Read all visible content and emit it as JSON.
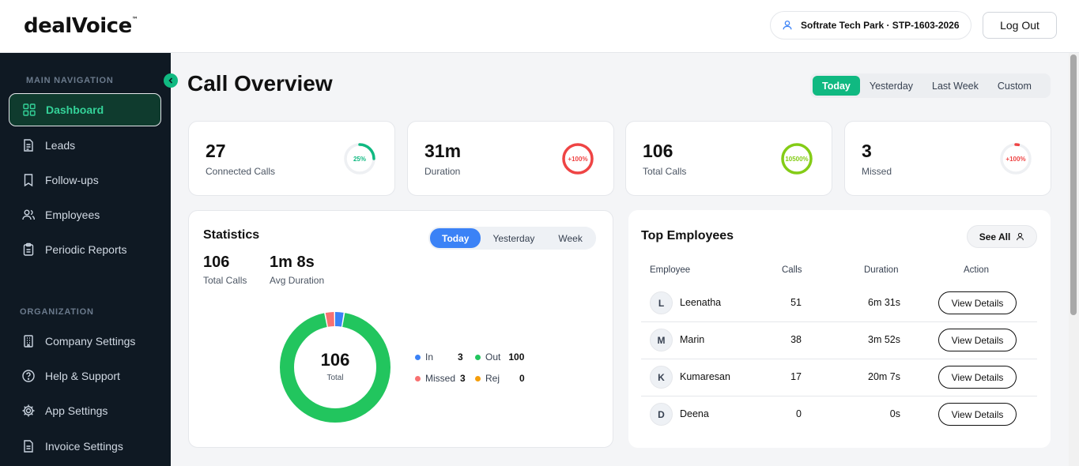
{
  "app": {
    "logo": "dealVoice",
    "logo_tm": "™"
  },
  "header": {
    "company": "Softrate Tech Park · STP-1603-2026",
    "logout_label": "Log Out"
  },
  "sidebar": {
    "main_section": "MAIN NAVIGATION",
    "main_items": [
      {
        "label": "Dashboard",
        "icon": "grid-icon"
      },
      {
        "label": "Leads",
        "icon": "document-icon"
      },
      {
        "label": "Follow-ups",
        "icon": "bookmark-icon"
      },
      {
        "label": "Employees",
        "icon": "users-icon"
      },
      {
        "label": "Periodic Reports",
        "icon": "clipboard-icon"
      }
    ],
    "org_section": "ORGANIZATION",
    "org_items": [
      {
        "label": "Company Settings",
        "icon": "building-icon"
      },
      {
        "label": "Help & Support",
        "icon": "help-icon"
      },
      {
        "label": "App Settings",
        "icon": "gear-icon"
      },
      {
        "label": "Invoice Settings",
        "icon": "invoice-icon"
      }
    ]
  },
  "main": {
    "title": "Call Overview",
    "range_tabs": [
      "Today",
      "Yesterday",
      "Last Week",
      "Custom"
    ],
    "active_range": "Today"
  },
  "stat_cards": [
    {
      "value": "27",
      "label": "Connected Calls",
      "ring_text": "25%",
      "ring_color": "#10b981",
      "ring_fraction": 0.25
    },
    {
      "value": "31m",
      "label": "Duration",
      "ring_text": "+100%",
      "ring_color": "#ef4444",
      "ring_fraction": 1.0
    },
    {
      "value": "106",
      "label": "Total Calls",
      "ring_text": "10500%",
      "ring_color": "#84cc16",
      "ring_fraction": 1.0
    },
    {
      "value": "3",
      "label": "Missed",
      "ring_text": "+100%",
      "ring_color": "#ef4444",
      "ring_fraction": 0.03
    }
  ],
  "statistics": {
    "title": "Statistics",
    "tabs": [
      "Today",
      "Yesterday",
      "Week"
    ],
    "active_tab": "Today",
    "total_calls": "106",
    "total_calls_label": "Total Calls",
    "avg_duration": "1m 8s",
    "avg_duration_label": "Avg Duration",
    "donut_center": "106",
    "donut_center_label": "Total",
    "legend": [
      {
        "label": "In",
        "value": "3",
        "color": "#3b82f6"
      },
      {
        "label": "Out",
        "value": "100",
        "color": "#22c55e"
      },
      {
        "label": "Missed",
        "value": "3",
        "color": "#f87171"
      },
      {
        "label": "Rej",
        "value": "0",
        "color": "#f59e0b"
      }
    ]
  },
  "top_employees": {
    "title": "Top Employees",
    "see_all": "See All",
    "columns": [
      "Employee",
      "Calls",
      "Duration",
      "Action"
    ],
    "rows": [
      {
        "initial": "L",
        "name": "Leenatha",
        "calls": "51",
        "duration": "6m 31s",
        "action": "View Details"
      },
      {
        "initial": "M",
        "name": "Marin",
        "calls": "38",
        "duration": "3m 52s",
        "action": "View Details"
      },
      {
        "initial": "K",
        "name": "Kumaresan",
        "calls": "17",
        "duration": "20m 7s",
        "action": "View Details"
      },
      {
        "initial": "D",
        "name": "Deena",
        "calls": "0",
        "duration": "0s",
        "action": "View Details"
      }
    ]
  },
  "colors": {
    "accent": "#10b981",
    "sidebar_bg": "#0f1923",
    "blue": "#3b82f6"
  }
}
